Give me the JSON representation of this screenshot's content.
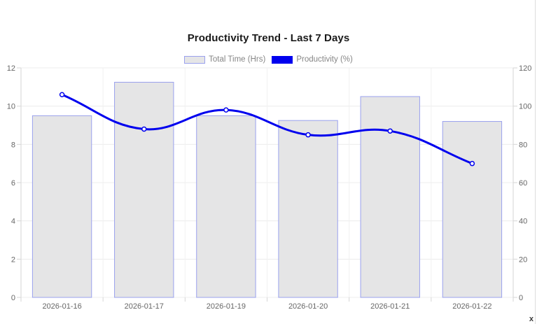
{
  "window": {
    "close_glyph": "x"
  },
  "chart": {
    "title": "Productivity Trend - Last 7 Days",
    "legend": [
      {
        "label": "Total Time (Hrs)"
      },
      {
        "label": "Productivity (%)"
      }
    ]
  },
  "chart_data": {
    "type": "bar+line",
    "title": "Productivity Trend - Last 7 Days",
    "categories": [
      "2026-01-16",
      "2026-01-17",
      "2026-01-19",
      "2026-01-20",
      "2026-01-21",
      "2026-01-22"
    ],
    "series": [
      {
        "name": "Total Time (Hrs)",
        "type": "bar",
        "axis": "left",
        "values": [
          9.5,
          11.25,
          9.5,
          9.25,
          10.5,
          9.2
        ],
        "fill": "#e5e5e6",
        "border": "#9aa1ee"
      },
      {
        "name": "Productivity (%)",
        "type": "line",
        "axis": "right",
        "values": [
          106,
          88,
          98,
          85,
          87,
          70
        ],
        "color": "#0000ee",
        "tension": 0.4,
        "point_fill": "#ffffff"
      }
    ],
    "axes": {
      "left": {
        "min": 0,
        "max": 12,
        "ticks": [
          0,
          2,
          4,
          6,
          8,
          10,
          12
        ]
      },
      "right": {
        "min": 0,
        "max": 120,
        "ticks": [
          0,
          20,
          40,
          60,
          80,
          100,
          120
        ]
      }
    },
    "legend_position": "top",
    "grid": true
  },
  "colors": {
    "grid": "#ececec",
    "axis": "#d6d6d6",
    "tick_text": "#666666",
    "legend_text": "#868686",
    "title_text": "#1a1a1a",
    "edge_line": "#dddddd"
  }
}
